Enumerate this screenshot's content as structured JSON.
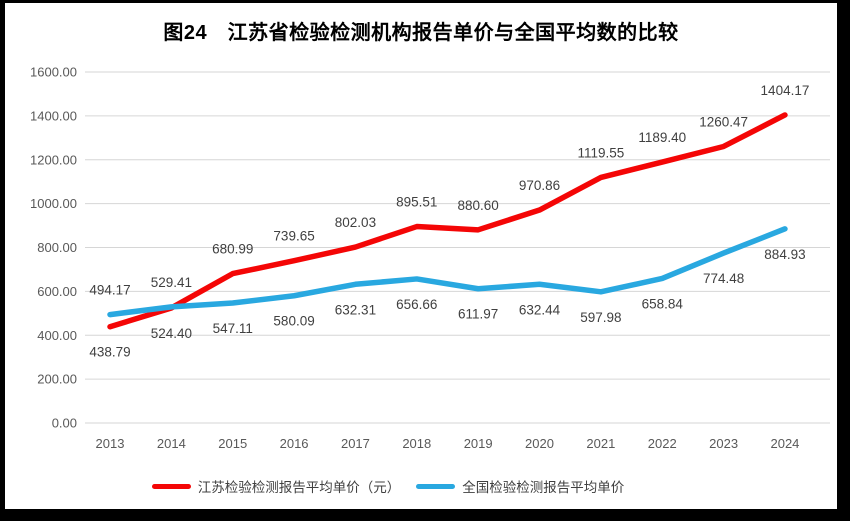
{
  "title": "图24　江苏省检验检测机构报告单价与全国平均数的比较",
  "chart_data": {
    "type": "line",
    "categories": [
      "2013",
      "2014",
      "2015",
      "2016",
      "2017",
      "2018",
      "2019",
      "2020",
      "2021",
      "2022",
      "2023",
      "2024"
    ],
    "series": [
      {
        "name": "江苏检验检测报告平均单价（元）",
        "color": "#f40606",
        "values": [
          438.79,
          524.4,
          680.99,
          739.65,
          802.03,
          895.51,
          880.6,
          970.86,
          1119.55,
          1189.4,
          1260.47,
          1404.17
        ]
      },
      {
        "name": "全国检验检测报告平均单价",
        "color": "#29a8e0",
        "values": [
          494.17,
          529.41,
          547.11,
          580.09,
          632.31,
          656.66,
          611.97,
          632.44,
          597.98,
          658.84,
          774.48,
          884.93
        ]
      }
    ],
    "title": "图24　江苏省检验检测机构报告单价与全国平均数的比较",
    "xlabel": "",
    "ylabel": "",
    "ylim": [
      0,
      1600
    ],
    "yticks": [
      "0.00",
      "200.00",
      "400.00",
      "600.00",
      "800.00",
      "1000.00",
      "1200.00",
      "1400.00",
      "1600.00"
    ],
    "grid": "horizontal-only",
    "legend_position": "bottom",
    "data_labels": "all points, two decimals, higher series above line / lower series below line"
  },
  "colors": {
    "grid_line": "#d6d6d6",
    "tick_text": "#595959",
    "data_label_text": "#404040",
    "plot_background": "#ffffff",
    "frame_border": "#000000"
  }
}
